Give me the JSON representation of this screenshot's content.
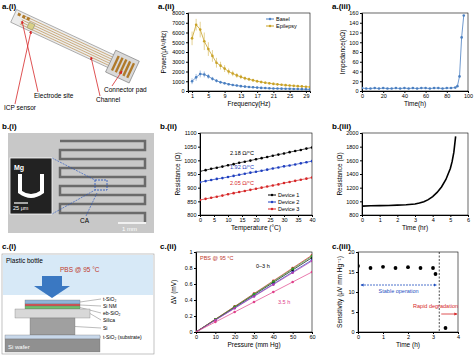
{
  "chart_data": [
    {
      "type": "line",
      "title": "a.(ii)",
      "x_label": "Frequency(Hz)",
      "y_label": "Power(μV²/Hz)",
      "x": [
        1,
        2,
        3,
        4,
        5,
        6,
        7,
        8,
        9,
        10,
        11,
        12,
        13,
        14,
        15,
        16,
        17,
        18,
        19,
        20,
        21,
        22,
        23,
        24,
        25,
        26,
        27,
        28,
        29,
        30
      ],
      "xlim": [
        0,
        30
      ],
      "xticks": [
        1,
        5,
        9,
        13,
        17,
        21,
        25,
        29
      ],
      "ylim": [
        0,
        8000
      ],
      "yticks": [
        0,
        1000,
        2000,
        3000,
        4000,
        5000,
        6000,
        7000,
        8000
      ],
      "legend": "upper right",
      "marker": "circle",
      "series": [
        {
          "name": "Basel",
          "color": "#4a7fc1",
          "values": [
            1000,
            1400,
            1750,
            1700,
            1500,
            1250,
            1050,
            900,
            800,
            700,
            620,
            560,
            500,
            450,
            410,
            380,
            350,
            320,
            300,
            280,
            260,
            250,
            240,
            230,
            220,
            210,
            200,
            190,
            180,
            170
          ],
          "errors": [
            300,
            350,
            350,
            300,
            250,
            200,
            180,
            150,
            130,
            120,
            110,
            100,
            90,
            90,
            80,
            80,
            70,
            70,
            60,
            60,
            60,
            50,
            50,
            50,
            50,
            40,
            40,
            40,
            40,
            40
          ]
        },
        {
          "name": "Epilepsy",
          "color": "#c9a227",
          "values": [
            5400,
            6800,
            6300,
            5100,
            4300,
            3600,
            2900,
            2600,
            2300,
            2000,
            1800,
            1600,
            1450,
            1300,
            1200,
            1100,
            1000,
            920,
            850,
            790,
            730,
            680,
            640,
            600,
            560,
            530,
            500,
            470,
            440,
            410
          ],
          "errors": [
            700,
            600,
            800,
            900,
            700,
            600,
            500,
            400,
            350,
            300,
            280,
            250,
            230,
            200,
            180,
            170,
            160,
            150,
            140,
            130,
            120,
            110,
            100,
            100,
            90,
            90,
            80,
            80,
            70,
            70
          ]
        }
      ]
    },
    {
      "type": "line",
      "title": "a.(iii)",
      "x_label": "Time(h)",
      "y_label": "Impedance(kΩ)",
      "x": [
        0,
        4,
        8,
        12,
        16,
        20,
        24,
        28,
        32,
        36,
        40,
        44,
        48,
        52,
        56,
        60,
        64,
        68,
        72,
        76,
        80,
        84,
        88,
        90,
        92,
        94,
        96
      ],
      "xlim": [
        0,
        100
      ],
      "xticks": [
        0,
        20,
        40,
        60,
        80,
        100
      ],
      "ylim": [
        0,
        160
      ],
      "yticks": [
        0,
        20,
        40,
        60,
        80,
        100,
        120,
        140,
        160
      ],
      "marker": "circle",
      "series": [
        {
          "color": "#4a7fc1",
          "values": [
            6,
            5,
            5,
            6,
            5,
            6,
            5,
            5,
            6,
            5,
            6,
            5,
            6,
            5,
            6,
            6,
            5,
            6,
            6,
            5,
            6,
            6,
            7,
            10,
            30,
            110,
            155
          ]
        }
      ]
    },
    {
      "type": "line",
      "title": "b.(ii)",
      "x_label": "Temperature (°C)",
      "y_label": "Resistance (Ω)",
      "x": [
        0,
        2,
        4,
        6,
        8,
        10,
        12,
        14,
        16,
        18,
        20,
        22,
        24,
        26,
        28,
        30,
        32,
        34,
        36,
        38,
        40
      ],
      "xlim": [
        0,
        40
      ],
      "xticks": [
        0,
        5,
        10,
        15,
        20,
        25,
        30,
        35,
        40
      ],
      "ylim": [
        800,
        1100
      ],
      "yticks": [
        800,
        850,
        900,
        950,
        1000,
        1050,
        1100
      ],
      "legend": "lower right",
      "marker": "circle",
      "annotations": [
        "2.18 Ω/°C",
        "1.92 Ω/°C",
        "2.05 Ω/°C"
      ],
      "series": [
        {
          "name": "Device 1",
          "color": "#000000",
          "values": [
            960,
            964,
            969,
            973,
            977,
            982,
            986,
            991,
            995,
            999,
            1004,
            1008,
            1012,
            1017,
            1021,
            1025,
            1030,
            1034,
            1038,
            1043,
            1047
          ]
        },
        {
          "name": "Device 2",
          "color": "#1f3fbf",
          "values": [
            920,
            924,
            928,
            932,
            935,
            939,
            943,
            947,
            951,
            955,
            958,
            962,
            966,
            970,
            974,
            978,
            981,
            985,
            989,
            993,
            997
          ]
        },
        {
          "name": "Device 3",
          "color": "#d62728",
          "values": [
            855,
            859,
            863,
            867,
            871,
            876,
            880,
            884,
            888,
            892,
            896,
            900,
            904,
            908,
            912,
            917,
            921,
            925,
            929,
            933,
            937
          ]
        }
      ]
    },
    {
      "type": "line",
      "title": "b.(iii)",
      "x_label": "Time (hr)",
      "y_label": "Resistance (Ω)",
      "x": [
        0,
        0.5,
        1,
        1.5,
        2,
        2.5,
        3,
        3.25,
        3.5,
        3.75,
        4,
        4.25,
        4.5,
        4.75,
        5,
        5.1,
        5.2,
        5.3
      ],
      "xlim": [
        0,
        6
      ],
      "xticks": [
        0,
        1,
        2,
        3,
        4,
        5,
        6
      ],
      "ylim": [
        800,
        2000
      ],
      "yticks": [
        800,
        1000,
        1200,
        1400,
        1600,
        1800,
        2000
      ],
      "series": [
        {
          "color": "#000000",
          "values": [
            930,
            935,
            937,
            940,
            945,
            950,
            960,
            975,
            995,
            1025,
            1070,
            1130,
            1210,
            1320,
            1480,
            1580,
            1720,
            1950
          ]
        }
      ]
    },
    {
      "type": "line",
      "title": "c.(ii)",
      "x_label": "Pressure (mm Hg)",
      "y_label": "ΔV (mV)",
      "x": [
        0,
        10,
        20,
        30,
        40,
        50,
        60
      ],
      "xlim": [
        0,
        60
      ],
      "xticks": [
        0,
        10,
        20,
        30,
        40,
        50,
        60
      ],
      "ylim": [
        0,
        1
      ],
      "yticks": [
        0,
        0.2,
        0.4,
        0.6,
        0.8,
        1
      ],
      "marker": "circle",
      "annotations": [
        "PBS @ 95 °C",
        "0–3 h",
        "3.5 h"
      ],
      "series": [
        {
          "color": "#000000",
          "values": [
            0,
            0.155,
            0.31,
            0.465,
            0.62,
            0.775,
            0.93
          ]
        },
        {
          "color": "#d62728",
          "values": [
            0,
            0.16,
            0.32,
            0.48,
            0.64,
            0.8,
            0.96
          ]
        },
        {
          "color": "#1f3fbf",
          "values": [
            0,
            0.15,
            0.3,
            0.45,
            0.6,
            0.75,
            0.9
          ]
        },
        {
          "color": "#2ca02c",
          "values": [
            0,
            0.158,
            0.316,
            0.474,
            0.632,
            0.79,
            0.948
          ]
        },
        {
          "color": "#b03cb0",
          "values": [
            0,
            0.148,
            0.296,
            0.444,
            0.592,
            0.74,
            0.888
          ]
        },
        {
          "color": "#e0408a",
          "values": [
            0,
            0.125,
            0.25,
            0.375,
            0.5,
            0.625,
            0.75
          ]
        }
      ]
    },
    {
      "type": "scatter",
      "title": "c.(iii)",
      "x_label": "Time (h)",
      "y_label": "Sensitivity (μV mm Hg⁻¹)",
      "x": [
        0,
        0.5,
        1,
        1.5,
        2,
        2.5,
        3,
        3.1,
        3.5
      ],
      "xlim": [
        0,
        4
      ],
      "xticks": [
        0,
        1,
        2,
        3,
        4
      ],
      "ylim": [
        0,
        20
      ],
      "yticks": [
        0,
        5,
        10,
        15,
        20
      ],
      "threshold": 3.25,
      "annotations": [
        "Stable operation",
        "Rapid degradation"
      ],
      "series": [
        {
          "color": "#000000",
          "values": [
            16.5,
            16,
            16.3,
            16,
            16.2,
            16,
            16,
            14.5,
            1
          ]
        }
      ]
    }
  ],
  "diagrams": [
    {
      "title": "a.(i)",
      "labels": [
        "Connector pad",
        "Channel",
        "Electrode site",
        "ICP sensor"
      ]
    },
    {
      "title": "b.(i)",
      "labels": [
        "Mg",
        "25 μm",
        "1 mm",
        "CA"
      ]
    },
    {
      "title": "c.(i)",
      "labels": [
        "Plastic bottle",
        "PBS @ 95 °C",
        "t-SiO₂",
        "Si NM",
        "eb-SiO₂",
        "Silica",
        "Si",
        "t-SiO₂ (substrate)",
        "Si wafer"
      ]
    }
  ]
}
